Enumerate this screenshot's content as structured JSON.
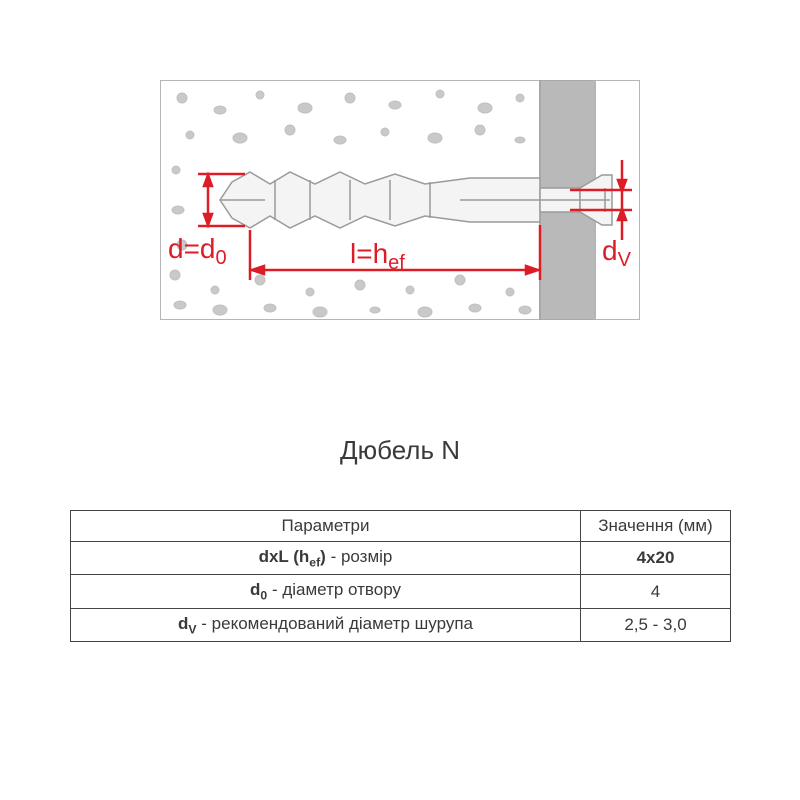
{
  "title": "Дюбель N",
  "diagram": {
    "bg": "#ffffff",
    "border": "#b5b5b5",
    "concrete_border": "#b5b5b5",
    "dot_color": "#c9c9c9",
    "plate_color": "#b9b9b9",
    "anchor_fill": "#f4f4f4",
    "anchor_stroke": "#a0a0a0",
    "callout_color": "#dc1d27",
    "labels": {
      "d_d0": "d=d",
      "d_d0_sub": "0",
      "l_hef_l": "l=h",
      "l_hef_sub": "ef",
      "dv": "d",
      "dv_sub": "V"
    }
  },
  "table": {
    "header_param": "Параметри",
    "header_val": "Значення (мм)",
    "rows": [
      {
        "param_html": "<span class='bold'>dxL (h<span class='sub'>ef</span>)</span> - розмір",
        "val_html": "<span class='bold'>4x20</span>"
      },
      {
        "param_html": "<span class='bold'>d<span class='sub'>0</span></span> - діаметр отвору",
        "val_html": "4"
      },
      {
        "param_html": "<span class='bold'>d<span class='sub'>V</span></span> - рекомендований діаметр шурупа",
        "val_html": "2,5 - 3,0"
      }
    ]
  }
}
